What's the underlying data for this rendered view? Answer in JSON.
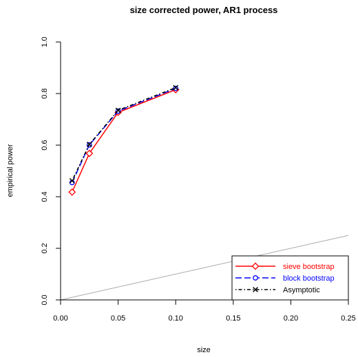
{
  "chart_data": {
    "type": "line",
    "title": "size corrected power, AR1 process",
    "xlabel": "size",
    "ylabel": "empirical power",
    "xlim": [
      0,
      0.25
    ],
    "ylim": [
      0,
      1.0
    ],
    "xticks": [
      "0.00",
      "0.05",
      "0.10",
      "0.15",
      "0.20",
      "0.25"
    ],
    "yticks": [
      "0.0",
      "0.2",
      "0.4",
      "0.6",
      "0.8",
      "1.0"
    ],
    "x": [
      0.01,
      0.025,
      0.05,
      0.1
    ],
    "series": [
      {
        "name": "sieve bootstrap",
        "values": [
          0.418,
          0.568,
          0.727,
          0.815
        ],
        "color": "#ff0000",
        "marker": "diamond",
        "dash": "solid"
      },
      {
        "name": "block bootstrap",
        "values": [
          0.455,
          0.601,
          0.732,
          0.82
        ],
        "color": "#0000ff",
        "marker": "circle",
        "dash": "long-dash"
      },
      {
        "name": "Asymptotic",
        "values": [
          0.462,
          0.603,
          0.735,
          0.823
        ],
        "color": "#000000",
        "marker": "cross",
        "dash": "dot-dash"
      }
    ],
    "reference_line": {
      "from": [
        0,
        0
      ],
      "to": [
        0.25,
        0.25
      ],
      "color": "#aaaaaa"
    },
    "legend_position": "bottom-right",
    "grid": false
  }
}
